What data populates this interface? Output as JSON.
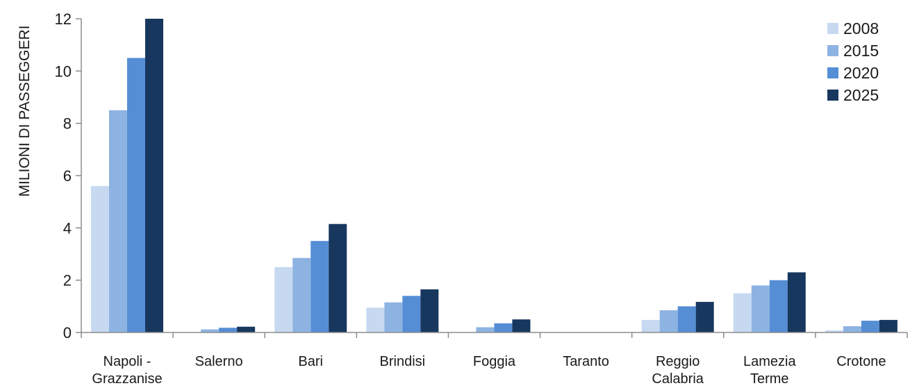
{
  "chart_data": {
    "type": "bar",
    "title": "",
    "xlabel": "",
    "ylabel": "MILIONI DI PASSEGGERI",
    "ylim": [
      0,
      12
    ],
    "yticks": [
      0,
      2,
      4,
      6,
      8,
      10,
      12
    ],
    "grid": false,
    "legend_position": "top-right",
    "categories": [
      [
        "Napoli -",
        "Grazzanise"
      ],
      [
        "Salerno"
      ],
      [
        "Bari"
      ],
      [
        "Brindisi"
      ],
      [
        "Foggia"
      ],
      [
        "Taranto"
      ],
      [
        "Reggio",
        "Calabria"
      ],
      [
        "Lamezia",
        "Terme"
      ],
      [
        "Crotone"
      ]
    ],
    "series": [
      {
        "name": "2008",
        "color": "#c6d9f1",
        "values": [
          5.6,
          0.0,
          2.5,
          0.95,
          0.0,
          0.0,
          0.48,
          1.5,
          0.08
        ]
      },
      {
        "name": "2015",
        "color": "#8db3e2",
        "values": [
          8.5,
          0.12,
          2.85,
          1.15,
          0.2,
          0.0,
          0.85,
          1.8,
          0.24
        ]
      },
      {
        "name": "2020",
        "color": "#558ed5",
        "values": [
          10.5,
          0.18,
          3.5,
          1.4,
          0.35,
          0.0,
          1.0,
          2.0,
          0.45
        ]
      },
      {
        "name": "2025",
        "color": "#17375e",
        "values": [
          12.0,
          0.22,
          4.15,
          1.65,
          0.5,
          0.0,
          1.17,
          2.3,
          0.48
        ]
      }
    ]
  }
}
